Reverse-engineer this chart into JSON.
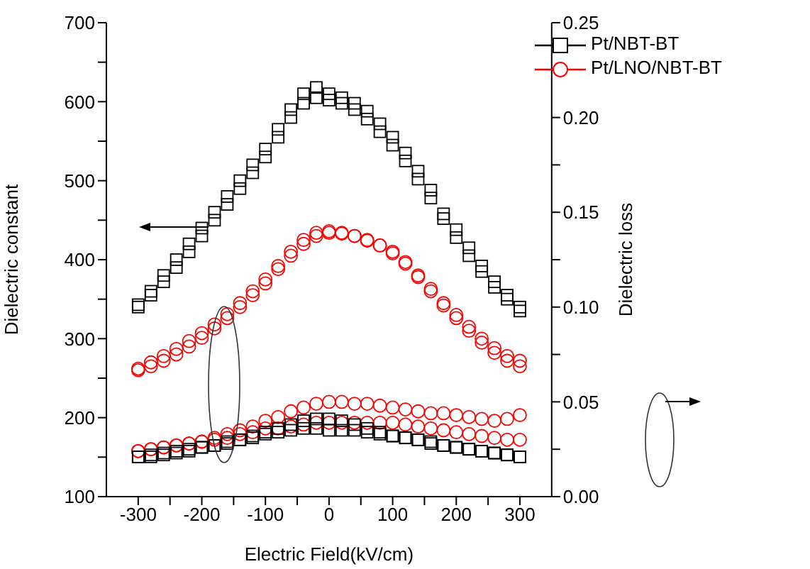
{
  "chart_data": {
    "type": "scatter",
    "xlabel": "Electric Field(kV/cm)",
    "ylabel": "Dielectric constant",
    "y2label": "Dielectric loss",
    "xlim": [
      -350,
      350
    ],
    "xticks": [
      -300,
      {
        "value": -250,
        "label": null
      },
      -200,
      {
        "value": -150,
        "label": null
      },
      -100,
      {
        "value": -50,
        "label": null
      },
      0,
      {
        "value": 50,
        "label": null
      },
      100,
      {
        "value": 150,
        "label": null
      },
      200,
      {
        "value": 250,
        "label": null
      },
      300
    ],
    "ylim": [
      100,
      700
    ],
    "yticks": [
      100,
      {
        "value": 150,
        "label": null
      },
      200,
      {
        "value": 250,
        "label": null
      },
      300,
      {
        "value": 350,
        "label": null
      },
      400,
      {
        "value": 450,
        "label": null
      },
      500,
      {
        "value": 550,
        "label": null
      },
      600,
      {
        "value": 650,
        "label": null
      },
      700
    ],
    "y2lim": [
      0,
      0.25
    ],
    "y2ticks": [
      {
        "value": 0,
        "label": "0.00"
      },
      {
        "value": 0.025,
        "label": null
      },
      {
        "value": 0.05,
        "label": "0.05"
      },
      {
        "value": 0.075,
        "label": null
      },
      {
        "value": 0.1,
        "label": "0.10"
      },
      {
        "value": 0.125,
        "label": null
      },
      {
        "value": 0.15,
        "label": "0.15"
      },
      {
        "value": 0.175,
        "label": null
      },
      {
        "value": 0.2,
        "label": "0.20"
      },
      {
        "value": 0.225,
        "label": null
      },
      0.25
    ],
    "legend": "top right",
    "grid": false,
    "series": [
      {
        "name": "Pt/NBT-BT",
        "color": "#000000",
        "marker": "square",
        "x": [
          -300,
          -280,
          -260,
          -240,
          -220,
          -200,
          -180,
          -160,
          -140,
          -120,
          -100,
          -80,
          -60,
          -40,
          -20,
          0,
          20,
          40,
          60,
          80,
          100,
          120,
          140,
          160,
          180,
          200,
          220,
          240,
          260,
          280,
          300,
          300,
          280,
          260,
          240,
          220,
          200,
          180,
          160,
          140,
          120,
          100,
          80,
          60,
          40,
          20,
          0,
          -20,
          -40,
          -60,
          -80,
          -100,
          -120,
          -140,
          -160,
          -180,
          -200,
          -220,
          -240,
          -260,
          -280,
          -300
        ],
        "values": [
          343,
          360,
          380,
          400,
          420,
          440,
          460,
          480,
          500,
          520,
          540,
          565,
          590,
          610,
          618,
          610,
          605,
          598,
          588,
          572,
          555,
          535,
          512,
          488,
          458,
          438,
          415,
          392,
          372,
          355,
          340,
          335,
          350,
          365,
          385,
          405,
          428,
          452,
          478,
          502,
          525,
          545,
          562,
          578,
          590,
          598,
          602,
          605,
          598,
          580,
          555,
          530,
          510,
          490,
          470,
          450,
          430,
          410,
          390,
          372,
          355,
          340
        ]
      },
      {
        "name": "Pt/LNO/NBT-BT",
        "color": "#ff0000",
        "marker": "circle",
        "x": [
          -300,
          -280,
          -260,
          -240,
          -220,
          -200,
          -180,
          -160,
          -140,
          -120,
          -100,
          -80,
          -60,
          -40,
          -20,
          0,
          20,
          40,
          60,
          80,
          100,
          120,
          140,
          160,
          180,
          200,
          220,
          240,
          260,
          280,
          300,
          300,
          280,
          260,
          240,
          220,
          200,
          180,
          160,
          140,
          120,
          100,
          80,
          60,
          40,
          20,
          0,
          -20,
          -40,
          -60,
          -80,
          -100,
          -120,
          -140,
          -160,
          -180,
          -200,
          -220,
          -240,
          -260,
          -280,
          -300
        ],
        "values": [
          262,
          270,
          278,
          287,
          297,
          307,
          318,
          331,
          345,
          360,
          375,
          392,
          410,
          425,
          434,
          436,
          434,
          430,
          424,
          418,
          410,
          397,
          380,
          363,
          345,
          330,
          315,
          300,
          288,
          278,
          272,
          265,
          272,
          282,
          295,
          310,
          326,
          342,
          360,
          378,
          395,
          408,
          418,
          425,
          430,
          433,
          434,
          430,
          420,
          405,
          388,
          370,
          355,
          340,
          326,
          313,
          301,
          290,
          280,
          272,
          265,
          260
        ]
      },
      {
        "color": "#000000",
        "marker": "square",
        "axis": "y2",
        "x": [
          -300,
          -280,
          -260,
          -240,
          -220,
          -200,
          -180,
          -160,
          -140,
          -120,
          -100,
          -80,
          -60,
          -40,
          -20,
          0,
          20,
          40,
          60,
          80,
          100,
          120,
          140,
          160,
          180,
          200,
          220,
          240,
          260,
          280,
          300,
          300,
          280,
          260,
          240,
          220,
          200,
          180,
          160,
          140,
          120,
          100,
          80,
          60,
          40,
          20,
          0,
          -20,
          -40,
          -60,
          -80,
          -100,
          -120,
          -140,
          -160,
          -180,
          -200,
          -220,
          -240,
          -260,
          -280,
          -300
        ],
        "values": [
          0.021,
          0.022,
          0.023,
          0.024,
          0.025,
          0.026,
          0.027,
          0.029,
          0.03,
          0.032,
          0.034,
          0.036,
          0.038,
          0.04,
          0.041,
          0.041,
          0.04,
          0.038,
          0.036,
          0.034,
          0.032,
          0.031,
          0.03,
          0.028,
          0.027,
          0.026,
          0.025,
          0.024,
          0.023,
          0.022,
          0.021,
          0.021,
          0.022,
          0.023,
          0.024,
          0.025,
          0.026,
          0.027,
          0.029,
          0.03,
          0.031,
          0.032,
          0.033,
          0.034,
          0.035,
          0.035,
          0.035,
          0.036,
          0.036,
          0.035,
          0.034,
          0.033,
          0.031,
          0.03,
          0.028,
          0.027,
          0.026,
          0.024,
          0.023,
          0.022,
          0.021,
          0.021
        ]
      },
      {
        "color": "#ff0000",
        "marker": "circle",
        "axis": "y2",
        "x": [
          -300,
          -280,
          -260,
          -240,
          -220,
          -200,
          -180,
          -160,
          -140,
          -120,
          -100,
          -80,
          -60,
          -40,
          -20,
          0,
          20,
          40,
          60,
          80,
          100,
          120,
          140,
          160,
          180,
          200,
          220,
          240,
          260,
          280,
          300,
          300,
          280,
          260,
          240,
          220,
          200,
          180,
          160,
          140,
          120,
          100,
          80,
          60,
          40,
          20,
          0,
          -20,
          -40,
          -60,
          -80,
          -100,
          -120,
          -140,
          -160,
          -180,
          -200,
          -220,
          -240,
          -260,
          -280,
          -300
        ],
        "values": [
          0.024,
          0.025,
          0.026,
          0.027,
          0.028,
          0.029,
          0.031,
          0.033,
          0.035,
          0.037,
          0.04,
          0.042,
          0.045,
          0.047,
          0.049,
          0.05,
          0.05,
          0.049,
          0.049,
          0.048,
          0.047,
          0.046,
          0.045,
          0.044,
          0.044,
          0.043,
          0.042,
          0.041,
          0.04,
          0.041,
          0.043,
          0.03,
          0.03,
          0.031,
          0.032,
          0.033,
          0.034,
          0.035,
          0.036,
          0.037,
          0.038,
          0.039,
          0.039,
          0.039,
          0.039,
          0.039,
          0.039,
          0.039,
          0.038,
          0.037,
          0.036,
          0.036,
          0.034,
          0.033,
          0.031,
          0.03,
          0.029,
          0.028,
          0.027,
          0.026,
          0.025,
          0.024
        ]
      }
    ]
  }
}
